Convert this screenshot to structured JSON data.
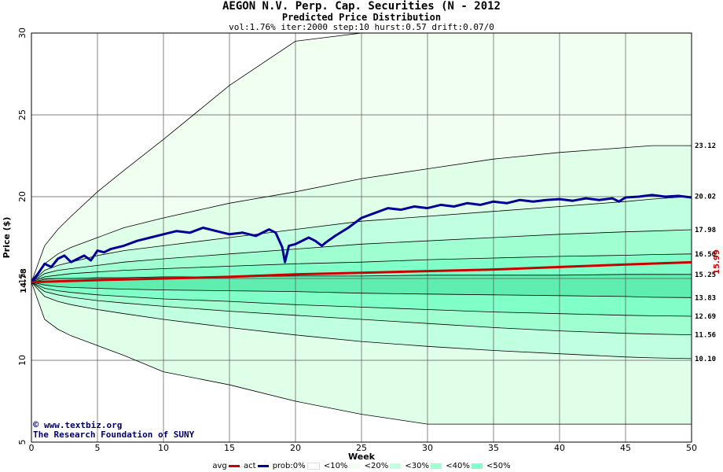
{
  "title": "AEGON N.V. Perp. Cap. Securities (N - 2012",
  "subtitle": "Predicted Price Distribution",
  "params": "vol:1.76% iter:2000 step:10 hurst:0.57 drift:0.07/0",
  "credit": {
    "url": "www.textbiz.org",
    "org": "The Research Foundation of SUNY"
  },
  "legend": {
    "avg": "avg",
    "act": "act",
    "prob": "prob:0%",
    "b10": "<10%",
    "b20": "<20%",
    "b30": "<30%",
    "b40": "<40%",
    "b50": "<50%"
  },
  "colors": {
    "avg": "#cc0000",
    "act": "#000099",
    "b10": "#f0fff0",
    "b20": "#e0ffe8",
    "b30": "#c0ffe0",
    "b40": "#a0ffd0",
    "b50": "#80ffc8",
    "b60": "#60eeb0"
  },
  "chart_data": {
    "type": "area",
    "xlabel": "Week",
    "ylabel": "Price ($)",
    "xlim": [
      0,
      50
    ],
    "ylim": [
      5,
      30
    ],
    "xticks": [
      0,
      5,
      10,
      15,
      20,
      25,
      30,
      35,
      40,
      45,
      50
    ],
    "yticks": [
      5,
      10,
      15,
      20,
      25,
      30
    ],
    "start_price": 14.78,
    "start_label": "14.78",
    "end_avg": 15.99,
    "end_avg_label": "15.99",
    "right_labels": [
      "23.12",
      "20.02",
      "17.98",
      "16.50",
      "15.25",
      "13.83",
      "12.69",
      "11.56",
      "10.10"
    ],
    "bands_x": [
      0,
      1,
      2,
      3,
      5,
      7,
      10,
      15,
      20,
      25,
      30,
      35,
      40,
      45,
      47,
      50
    ],
    "bands": [
      {
        "name": "outer_upper",
        "values": [
          14.78,
          17.0,
          18.0,
          18.8,
          20.3,
          21.6,
          23.5,
          26.8,
          29.5,
          30.0,
          30.0,
          30.0,
          30.0,
          30.0,
          30.0,
          30.0
        ]
      },
      {
        "name": "p_upper_1",
        "values": [
          14.78,
          15.9,
          16.5,
          16.9,
          17.5,
          18.1,
          18.7,
          19.6,
          20.3,
          21.1,
          21.7,
          22.3,
          22.7,
          23.0,
          23.12,
          23.12
        ]
      },
      {
        "name": "p_upper_2",
        "values": [
          14.78,
          15.5,
          15.8,
          16.0,
          16.4,
          16.7,
          17.0,
          17.5,
          18.0,
          18.5,
          18.8,
          19.1,
          19.4,
          19.7,
          19.85,
          20.02
        ]
      },
      {
        "name": "p_upper_3",
        "values": [
          14.78,
          15.3,
          15.5,
          15.6,
          15.8,
          16.0,
          16.2,
          16.5,
          16.8,
          17.1,
          17.3,
          17.5,
          17.7,
          17.85,
          17.9,
          17.98
        ]
      },
      {
        "name": "p_upper_4",
        "values": [
          14.78,
          15.1,
          15.2,
          15.3,
          15.4,
          15.5,
          15.6,
          15.75,
          15.9,
          16.0,
          16.15,
          16.25,
          16.35,
          16.42,
          16.46,
          16.5
        ]
      },
      {
        "name": "p_upper_5",
        "values": [
          14.78,
          14.95,
          15.0,
          15.0,
          15.05,
          15.05,
          15.1,
          15.1,
          15.15,
          15.15,
          15.2,
          15.2,
          15.2,
          15.25,
          15.25,
          15.25
        ]
      },
      {
        "name": "p_lower_5",
        "values": [
          14.78,
          14.6,
          14.5,
          14.45,
          14.4,
          14.35,
          14.3,
          14.25,
          14.2,
          14.1,
          14.05,
          14.0,
          13.95,
          13.9,
          13.85,
          13.83
        ]
      },
      {
        "name": "p_lower_4",
        "values": [
          14.78,
          14.4,
          14.25,
          14.15,
          14.0,
          13.9,
          13.75,
          13.6,
          13.4,
          13.25,
          13.1,
          12.95,
          12.85,
          12.75,
          12.72,
          12.69
        ]
      },
      {
        "name": "p_lower_3",
        "values": [
          14.78,
          14.2,
          14.0,
          13.85,
          13.65,
          13.5,
          13.3,
          13.0,
          12.75,
          12.5,
          12.25,
          12.0,
          11.8,
          11.65,
          11.6,
          11.56
        ]
      },
      {
        "name": "p_lower_2",
        "values": [
          14.78,
          13.9,
          13.6,
          13.4,
          13.1,
          12.85,
          12.5,
          12.0,
          11.55,
          11.15,
          10.85,
          10.6,
          10.4,
          10.2,
          10.15,
          10.1
        ]
      },
      {
        "name": "outer_lower",
        "values": [
          14.78,
          12.5,
          11.9,
          11.5,
          10.9,
          10.3,
          9.3,
          8.5,
          7.5,
          6.7,
          6.1,
          6.1,
          6.1,
          6.1,
          6.1,
          6.1
        ]
      }
    ],
    "series": [
      {
        "name": "act",
        "x": [
          0,
          0.5,
          1,
          1.5,
          2,
          2.5,
          3,
          3.5,
          4,
          4.5,
          5,
          5.5,
          6,
          7,
          8,
          9,
          10,
          11,
          12,
          13,
          14,
          15,
          16,
          17,
          18,
          18.5,
          19,
          19.2,
          19.5,
          20,
          21,
          21.5,
          22,
          22.3,
          23,
          24,
          25,
          26,
          27,
          28,
          29,
          30,
          31,
          32,
          33,
          34,
          35,
          36,
          37,
          38,
          39,
          40,
          41,
          42,
          43,
          44,
          44.5,
          45,
          46,
          47,
          48,
          49,
          50
        ],
        "values": [
          14.78,
          15.3,
          15.9,
          15.7,
          16.2,
          16.4,
          16.0,
          16.2,
          16.4,
          16.1,
          16.7,
          16.6,
          16.8,
          17.0,
          17.3,
          17.5,
          17.7,
          17.9,
          17.8,
          18.1,
          17.9,
          17.7,
          17.8,
          17.6,
          18.0,
          17.8,
          16.9,
          16.0,
          17.0,
          17.1,
          17.5,
          17.3,
          17.0,
          17.2,
          17.6,
          18.1,
          18.7,
          19.0,
          19.3,
          19.2,
          19.4,
          19.3,
          19.5,
          19.4,
          19.6,
          19.5,
          19.7,
          19.6,
          19.8,
          19.7,
          19.8,
          19.85,
          19.75,
          19.9,
          19.8,
          19.9,
          19.7,
          19.95,
          20.0,
          20.1,
          20.0,
          20.05,
          19.95
        ]
      },
      {
        "name": "avg",
        "x": [
          0,
          5,
          10,
          15,
          20,
          25,
          30,
          35,
          40,
          45,
          50
        ],
        "values": [
          14.78,
          14.9,
          15.0,
          15.1,
          15.25,
          15.35,
          15.45,
          15.55,
          15.7,
          15.85,
          15.99
        ]
      }
    ]
  }
}
